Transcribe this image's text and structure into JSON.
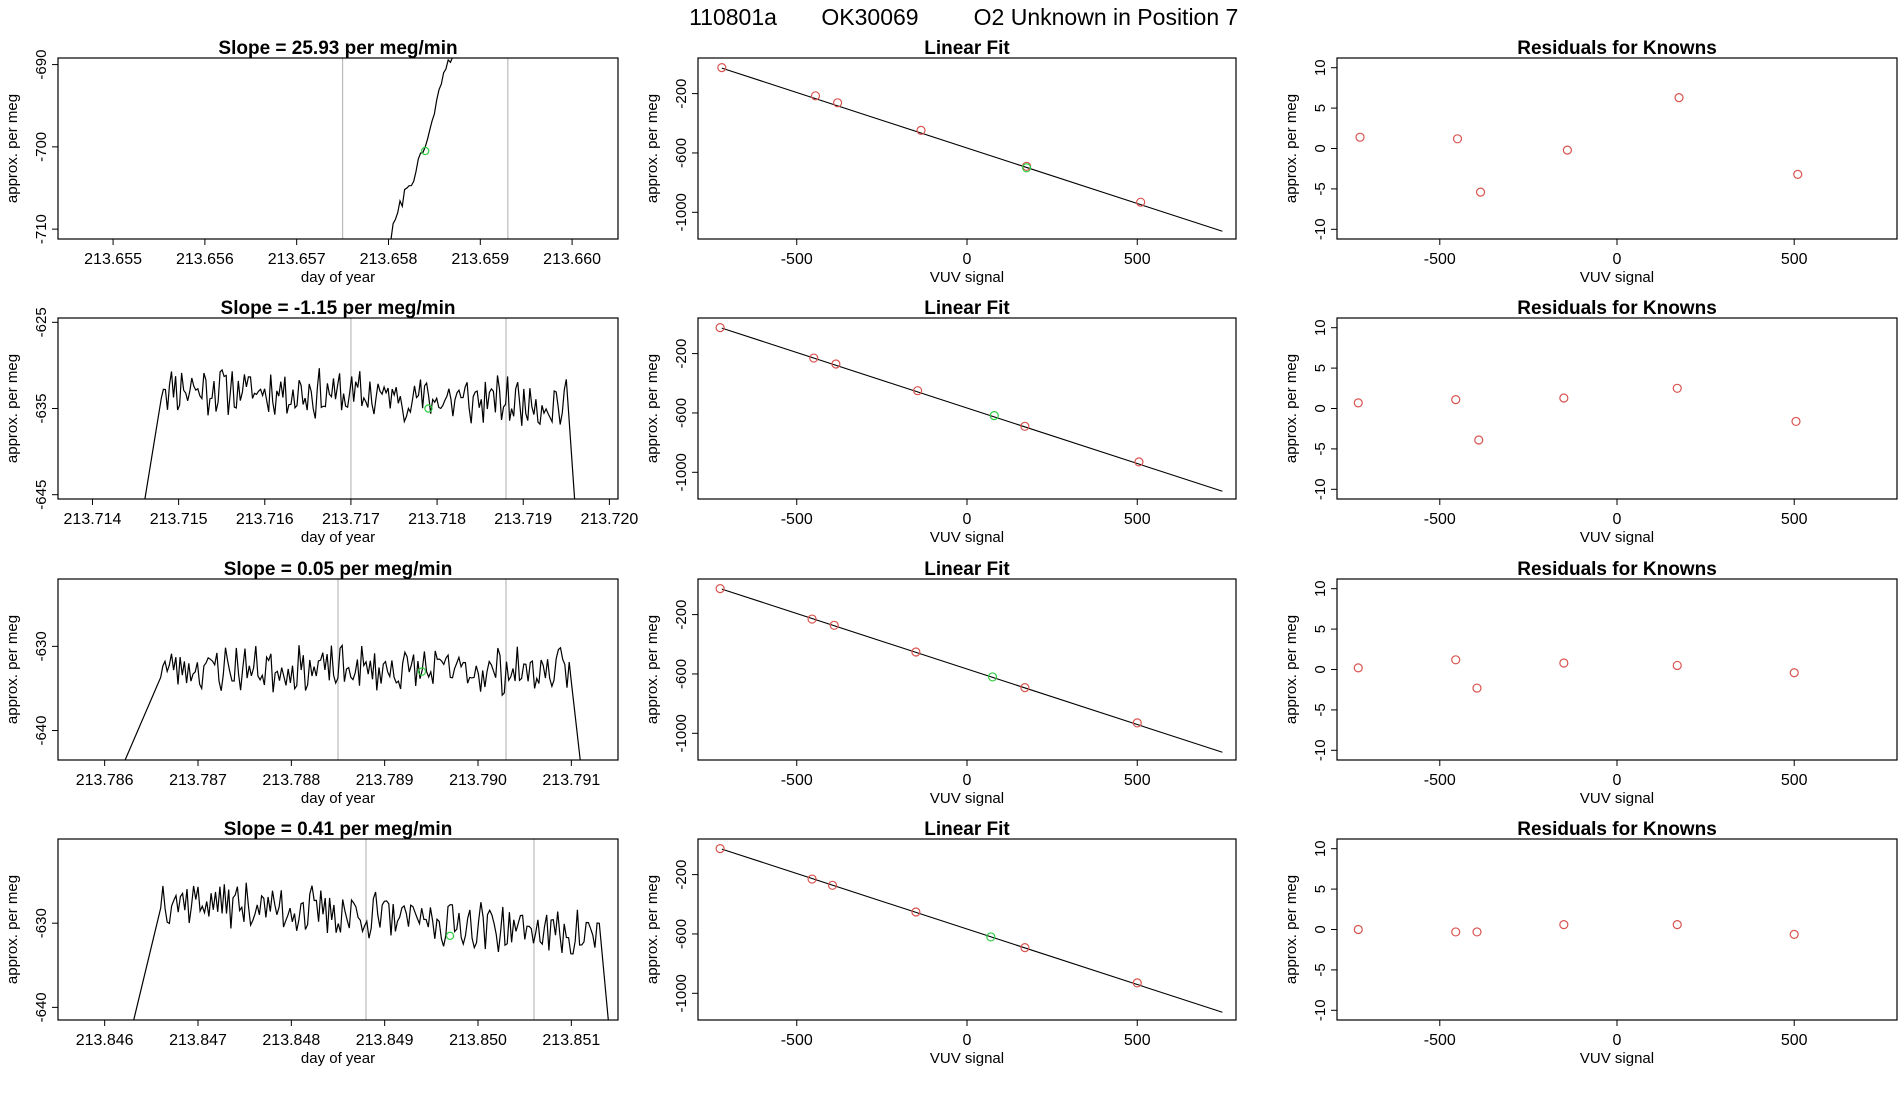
{
  "header": {
    "run_id": "110801a",
    "tank": "OK30069",
    "label": "O2 Unknown in Position  7"
  },
  "colors": {
    "line": "#000000",
    "known_points": "#d9534f",
    "unknown_point": "#2ecc40",
    "vline": "#bbbbbb"
  },
  "chart_data": [
    {
      "row": 0,
      "col": 0,
      "type": "line",
      "title": "Slope =  25.93  per meg/min",
      "xlabel": "day of year",
      "ylabel": "approx. per meg",
      "xlim": [
        213.6544,
        213.6605
      ],
      "ylim": [
        -711.2,
        -689.2
      ],
      "xticks": [
        "213.655",
        "213.656",
        "213.657",
        "213.658",
        "213.659",
        "213.660"
      ],
      "xtick_values": [
        213.655,
        213.656,
        213.657,
        213.658,
        213.659,
        213.66
      ],
      "yticks": [
        "-690",
        "-700",
        "-710"
      ],
      "ytick_values": [
        -690,
        -700,
        -710
      ],
      "vlines": [
        213.6575,
        213.6593
      ],
      "marker": {
        "x": 213.6584,
        "y": -700.5
      },
      "trace": {
        "start": 213.658,
        "end": 213.6588,
        "wobble": 0.8,
        "points": [
          [
            213.658,
            -712
          ],
          [
            213.6581,
            -708
          ],
          [
            213.6582,
            -705
          ],
          [
            213.6583,
            -703
          ],
          [
            213.6584,
            -700
          ],
          [
            213.6585,
            -696
          ],
          [
            213.6586,
            -691
          ],
          [
            213.6587,
            -689
          ],
          [
            213.6588,
            -688
          ]
        ]
      }
    },
    {
      "row": 1,
      "col": 0,
      "type": "line",
      "title": "Slope =  -1.15  per meg/min",
      "xlabel": "day of year",
      "ylabel": "approx. per meg",
      "xlim": [
        213.7136,
        213.7201
      ],
      "ylim": [
        -645.5,
        -624.5
      ],
      "xticks": [
        "213.714",
        "213.715",
        "213.716",
        "213.717",
        "213.718",
        "213.719",
        "213.720"
      ],
      "xtick_values": [
        213.714,
        213.715,
        213.716,
        213.717,
        213.718,
        213.719,
        213.72
      ],
      "yticks": [
        "-625",
        "-635",
        "-645"
      ],
      "ytick_values": [
        -625,
        -635,
        -645
      ],
      "vlines": [
        213.717,
        213.7188
      ],
      "marker": {
        "x": 213.7179,
        "y": -635
      },
      "trace": {
        "start": 213.7146,
        "rise_end": 213.7148,
        "fall_start": 213.7195,
        "end": 213.7196,
        "base": -646,
        "levelA": -632.5,
        "levelB": -634.5,
        "amp": 2.4,
        "n": 200,
        "seed": 11
      }
    },
    {
      "row": 2,
      "col": 0,
      "type": "line",
      "title": "Slope =  0.05  per meg/min",
      "xlabel": "day of year",
      "ylabel": "approx. per meg",
      "xlim": [
        213.7855,
        213.7915
      ],
      "ylim": [
        -643.5,
        -622.0
      ],
      "xticks": [
        "213.786",
        "213.787",
        "213.788",
        "213.789",
        "213.790",
        "213.791"
      ],
      "xtick_values": [
        213.786,
        213.787,
        213.788,
        213.789,
        213.79,
        213.791
      ],
      "yticks": [
        "-630",
        "-640"
      ],
      "ytick_values": [
        -630,
        -640
      ],
      "vlines": [
        213.7885,
        213.7903
      ],
      "marker": {
        "x": 213.7894,
        "y": -633
      },
      "trace": {
        "start": 213.7862,
        "rise_end": 213.7866,
        "fall_start": 213.791,
        "end": 213.7911,
        "base": -644,
        "levelA": -632.5,
        "levelB": -633.0,
        "amp": 2.3,
        "n": 190,
        "seed": 23
      }
    },
    {
      "row": 3,
      "col": 0,
      "type": "line",
      "title": "Slope =  0.41  per meg/min",
      "xlabel": "day of year",
      "ylabel": "approx. per meg",
      "xlim": [
        213.8455,
        213.8515
      ],
      "ylim": [
        -641.5,
        -620.0
      ],
      "xticks": [
        "213.846",
        "213.847",
        "213.848",
        "213.849",
        "213.850",
        "213.851"
      ],
      "xtick_values": [
        213.846,
        213.847,
        213.848,
        213.849,
        213.85,
        213.851
      ],
      "yticks": [
        "-630",
        "-640"
      ],
      "ytick_values": [
        -630,
        -640
      ],
      "vlines": [
        213.8488,
        213.8506
      ],
      "marker": {
        "x": 213.8497,
        "y": -631.5
      },
      "trace": {
        "start": 213.8463,
        "rise_end": 213.8466,
        "fall_start": 213.8513,
        "end": 213.8514,
        "base": -642,
        "levelA": -627.0,
        "levelB": -631.5,
        "amp": 2.4,
        "n": 200,
        "seed": 37
      }
    },
    {
      "row": 0,
      "col": 1,
      "type": "scatter",
      "title": "Linear Fit",
      "xlabel": "VUV signal",
      "ylabel": "approx. per meg",
      "xlim": [
        -790,
        790
      ],
      "ylim": [
        -1180,
        40
      ],
      "xticks": [
        "-500",
        "0",
        "500"
      ],
      "xtick_values": [
        -500,
        0,
        500
      ],
      "yticks": [
        "-200",
        "-600",
        "-1000"
      ],
      "ytick_values": [
        -200,
        -600,
        -1000
      ],
      "fit_line": [
        [
          -720,
          -28
        ],
        [
          750,
          -1128
        ]
      ],
      "knowns": [
        [
          -720,
          -25
        ],
        [
          -445,
          -215
        ],
        [
          -380,
          -262
        ],
        [
          -135,
          -448
        ],
        [
          175,
          -690
        ],
        [
          510,
          -932
        ]
      ],
      "unknown": [
        175,
        -700
      ]
    },
    {
      "row": 1,
      "col": 1,
      "type": "scatter",
      "title": "Linear Fit",
      "xlabel": "VUV signal",
      "ylabel": "approx. per meg",
      "xlim": [
        -790,
        790
      ],
      "ylim": [
        -1180,
        40
      ],
      "xticks": [
        "-500",
        "0",
        "500"
      ],
      "xtick_values": [
        -500,
        0,
        500
      ],
      "yticks": [
        "-200",
        "-600",
        "-1000"
      ],
      "ytick_values": [
        -200,
        -600,
        -1000
      ],
      "fit_line": [
        [
          -720,
          -28
        ],
        [
          750,
          -1128
        ]
      ],
      "knowns": [
        [
          -725,
          -25
        ],
        [
          -450,
          -230
        ],
        [
          -385,
          -270
        ],
        [
          -145,
          -450
        ],
        [
          170,
          -690
        ],
        [
          505,
          -930
        ]
      ],
      "unknown": [
        80,
        -618
      ]
    },
    {
      "row": 2,
      "col": 1,
      "type": "scatter",
      "title": "Linear Fit",
      "xlabel": "VUV signal",
      "ylabel": "approx. per meg",
      "xlim": [
        -790,
        790
      ],
      "ylim": [
        -1180,
        40
      ],
      "xticks": [
        "-500",
        "0",
        "500"
      ],
      "xtick_values": [
        -500,
        0,
        500
      ],
      "yticks": [
        "-200",
        "-600",
        "-1000"
      ],
      "ytick_values": [
        -200,
        -600,
        -1000
      ],
      "fit_line": [
        [
          -720,
          -28
        ],
        [
          750,
          -1128
        ]
      ],
      "knowns": [
        [
          -725,
          -25
        ],
        [
          -455,
          -230
        ],
        [
          -390,
          -272
        ],
        [
          -150,
          -452
        ],
        [
          170,
          -692
        ],
        [
          500,
          -930
        ]
      ],
      "unknown": [
        75,
        -620
      ]
    },
    {
      "row": 3,
      "col": 1,
      "type": "scatter",
      "title": "Linear Fit",
      "xlabel": "VUV signal",
      "ylabel": "approx. per meg",
      "xlim": [
        -790,
        790
      ],
      "ylim": [
        -1180,
        40
      ],
      "xticks": [
        "-500",
        "0",
        "500"
      ],
      "xtick_values": [
        -500,
        0,
        500
      ],
      "yticks": [
        "-200",
        "-600",
        "-1000"
      ],
      "ytick_values": [
        -200,
        -600,
        -1000
      ],
      "fit_line": [
        [
          -720,
          -28
        ],
        [
          750,
          -1128
        ]
      ],
      "knowns": [
        [
          -725,
          -25
        ],
        [
          -455,
          -230
        ],
        [
          -395,
          -272
        ],
        [
          -150,
          -452
        ],
        [
          170,
          -692
        ],
        [
          500,
          -930
        ]
      ],
      "unknown": [
        70,
        -620
      ]
    },
    {
      "row": 0,
      "col": 2,
      "type": "scatter",
      "title": "Residuals for Knowns",
      "xlabel": "VUV signal",
      "ylabel": "approx. per meg",
      "xlim": [
        -790,
        790
      ],
      "ylim": [
        -11.2,
        11.2
      ],
      "xticks": [
        "-500",
        "0",
        "500"
      ],
      "xtick_values": [
        -500,
        0,
        500
      ],
      "yticks": [
        "10",
        "5",
        "0",
        "-5",
        "-10"
      ],
      "ytick_values": [
        10,
        5,
        0,
        -5,
        -10
      ],
      "knowns": [
        [
          -725,
          1.4
        ],
        [
          -450,
          1.2
        ],
        [
          -385,
          -5.4
        ],
        [
          -140,
          -0.2
        ],
        [
          175,
          6.3
        ],
        [
          510,
          -3.2
        ]
      ]
    },
    {
      "row": 1,
      "col": 2,
      "type": "scatter",
      "title": "Residuals for Knowns",
      "xlabel": "VUV signal",
      "ylabel": "approx. per meg",
      "xlim": [
        -790,
        790
      ],
      "ylim": [
        -11.2,
        11.2
      ],
      "xticks": [
        "-500",
        "0",
        "500"
      ],
      "xtick_values": [
        -500,
        0,
        500
      ],
      "yticks": [
        "10",
        "5",
        "0",
        "-5",
        "-10"
      ],
      "ytick_values": [
        10,
        5,
        0,
        -5,
        -10
      ],
      "knowns": [
        [
          -730,
          0.7
        ],
        [
          -455,
          1.1
        ],
        [
          -390,
          -3.9
        ],
        [
          -150,
          1.3
        ],
        [
          170,
          2.5
        ],
        [
          505,
          -1.6
        ]
      ]
    },
    {
      "row": 2,
      "col": 2,
      "type": "scatter",
      "title": "Residuals for Knowns",
      "xlabel": "VUV signal",
      "ylabel": "approx. per meg",
      "xlim": [
        -790,
        790
      ],
      "ylim": [
        -11.2,
        11.2
      ],
      "xticks": [
        "-500",
        "0",
        "500"
      ],
      "xtick_values": [
        -500,
        0,
        500
      ],
      "yticks": [
        "10",
        "5",
        "0",
        "-5",
        "-10"
      ],
      "ytick_values": [
        10,
        5,
        0,
        -5,
        -10
      ],
      "knowns": [
        [
          -730,
          0.2
        ],
        [
          -455,
          1.2
        ],
        [
          -395,
          -2.3
        ],
        [
          -150,
          0.8
        ],
        [
          170,
          0.5
        ],
        [
          500,
          -0.4
        ]
      ]
    },
    {
      "row": 3,
      "col": 2,
      "type": "scatter",
      "title": "Residuals for Knowns",
      "xlabel": "VUV signal",
      "ylabel": "approx. per meg",
      "xlim": [
        -790,
        790
      ],
      "ylim": [
        -11.2,
        11.2
      ],
      "xticks": [
        "-500",
        "0",
        "500"
      ],
      "xtick_values": [
        -500,
        0,
        500
      ],
      "yticks": [
        "10",
        "5",
        "0",
        "-5",
        "-10"
      ],
      "ytick_values": [
        10,
        5,
        0,
        -5,
        -10
      ],
      "knowns": [
        [
          -730,
          0.0
        ],
        [
          -455,
          -0.3
        ],
        [
          -395,
          -0.3
        ],
        [
          -150,
          0.6
        ],
        [
          170,
          0.6
        ],
        [
          500,
          -0.6
        ]
      ]
    }
  ]
}
